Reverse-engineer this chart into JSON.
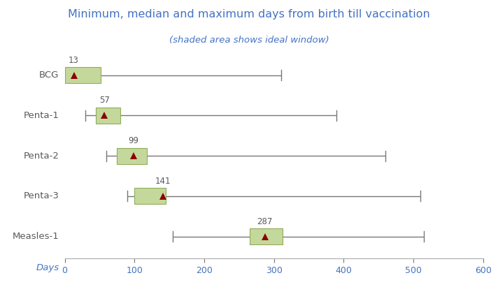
{
  "title": "Minimum, median and maximum days from birth till vaccination",
  "subtitle": "(shaded area shows ideal window)",
  "vaccines": [
    "BCG",
    "Penta-1",
    "Penta-2",
    "Penta-3",
    "Measles-1"
  ],
  "min_vals": [
    0,
    30,
    60,
    90,
    155
  ],
  "max_vals": [
    310,
    390,
    460,
    510,
    515
  ],
  "box_start": [
    0,
    45,
    75,
    100,
    265
  ],
  "box_end": [
    52,
    80,
    118,
    145,
    312
  ],
  "median_vals": [
    13,
    57,
    99,
    141,
    287
  ],
  "box_color": "#c5d89c",
  "box_edge_color": "#8fad5a",
  "line_color": "#777777",
  "triangle_color": "#8b0000",
  "title_color": "#4472c4",
  "subtitle_color": "#4472c4",
  "label_color": "#595959",
  "tick_color": "#4472c4",
  "background_color": "#ffffff",
  "xlim": [
    0,
    600
  ],
  "xtick_values": [
    0,
    100,
    200,
    300,
    400,
    500,
    600
  ],
  "days_label": "Days"
}
